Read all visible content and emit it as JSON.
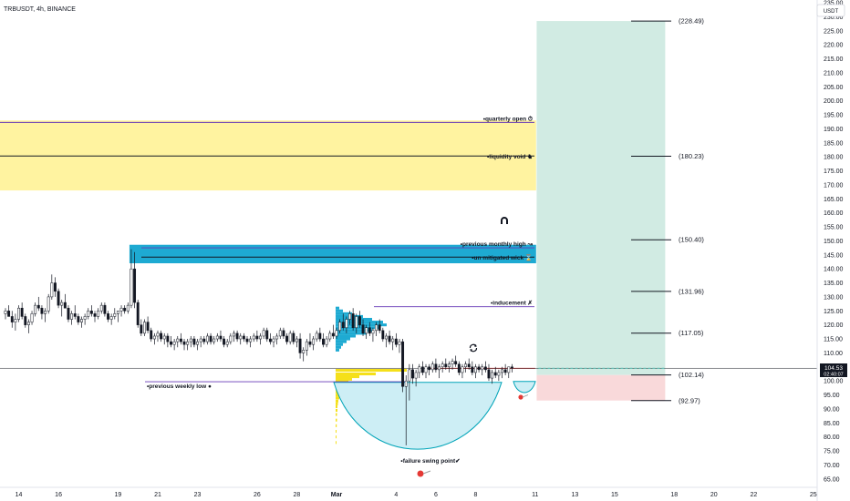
{
  "symbol_header": "TRBUSDT, 4h, BINANCE",
  "currency_button": "USDT",
  "current_price": {
    "value": "104.53",
    "countdown": "02:40:07"
  },
  "chart_data": {
    "type": "candlestick",
    "title": "",
    "ylim": [
      62,
      236
    ],
    "yticks": [
      65,
      70,
      75,
      80,
      85,
      90,
      95,
      100,
      105,
      110,
      115,
      120,
      125,
      130,
      135,
      140,
      145,
      150,
      155,
      160,
      165,
      170,
      175,
      180,
      185,
      190,
      195,
      200,
      205,
      210,
      215,
      220,
      225,
      230,
      235
    ],
    "ytick_labels": [
      "65.00",
      "70.00",
      "75.00",
      "80.00",
      "85.00",
      "90.00",
      "95.00",
      "100.00",
      "105.00",
      "110.00",
      "115.00",
      "120.00",
      "125.00",
      "130.00",
      "135.00",
      "140.00",
      "145.00",
      "150.00",
      "155.00",
      "160.00",
      "165.00",
      "170.00",
      "175.00",
      "180.00",
      "185.00",
      "190.00",
      "195.00",
      "200.00",
      "205.00",
      "210.00",
      "215.00",
      "220.00",
      "225.00",
      "230.00",
      "235.00"
    ],
    "xticks": [
      {
        "label": "14",
        "i": 4
      },
      {
        "label": "16",
        "i": 16
      },
      {
        "label": "19",
        "i": 34
      },
      {
        "label": "21",
        "i": 46
      },
      {
        "label": "23",
        "i": 58
      },
      {
        "label": "26",
        "i": 76
      },
      {
        "label": "28",
        "i": 88
      },
      {
        "label": "Mar",
        "i": 100
      },
      {
        "label": "4",
        "i": 118
      },
      {
        "label": "6",
        "i": 130
      },
      {
        "label": "8",
        "i": 142
      },
      {
        "label": "11",
        "i": 160
      },
      {
        "label": "13",
        "i": 172
      },
      {
        "label": "15",
        "i": 184
      },
      {
        "label": "18",
        "i": 202
      },
      {
        "label": "20",
        "i": 214
      },
      {
        "label": "22",
        "i": 226
      },
      {
        "label": "25",
        "i": 244
      }
    ],
    "candles": [
      [
        124,
        126,
        122,
        125
      ],
      [
        125,
        127,
        123,
        123
      ],
      [
        123,
        125,
        119,
        121
      ],
      [
        121,
        124,
        118,
        122
      ],
      [
        122,
        127,
        121,
        126
      ],
      [
        126,
        128,
        122,
        123
      ],
      [
        123,
        124,
        119,
        120
      ],
      [
        120,
        122,
        117,
        121
      ],
      [
        121,
        125,
        120,
        124
      ],
      [
        124,
        128,
        123,
        127
      ],
      [
        127,
        130,
        125,
        126
      ],
      [
        126,
        127,
        122,
        124
      ],
      [
        124,
        126,
        121,
        125
      ],
      [
        125,
        131,
        124,
        130
      ],
      [
        130,
        138,
        129,
        135
      ],
      [
        135,
        137,
        130,
        132
      ],
      [
        132,
        133,
        126,
        127
      ],
      [
        127,
        129,
        123,
        128
      ],
      [
        128,
        131,
        126,
        126
      ],
      [
        126,
        127,
        121,
        122
      ],
      [
        122,
        125,
        120,
        124
      ],
      [
        124,
        127,
        122,
        123
      ],
      [
        123,
        124,
        120,
        121
      ],
      [
        121,
        123,
        119,
        122
      ],
      [
        122,
        124,
        120,
        123
      ],
      [
        123,
        126,
        122,
        125
      ],
      [
        125,
        127,
        123,
        124
      ],
      [
        124,
        125,
        121,
        123
      ],
      [
        123,
        126,
        122,
        125
      ],
      [
        125,
        128,
        124,
        127
      ],
      [
        127,
        128,
        123,
        124
      ],
      [
        124,
        125,
        121,
        122
      ],
      [
        122,
        124,
        120,
        123
      ],
      [
        123,
        126,
        122,
        124
      ],
      [
        124,
        125,
        121,
        125
      ],
      [
        125,
        127,
        123,
        126
      ],
      [
        126,
        127,
        124,
        125
      ],
      [
        125,
        128,
        124,
        127
      ],
      [
        127,
        147,
        126,
        140
      ],
      [
        140,
        146,
        126,
        128
      ],
      [
        128,
        129,
        119,
        120
      ],
      [
        120,
        122,
        116,
        117
      ],
      [
        117,
        122,
        116,
        121
      ],
      [
        121,
        123,
        117,
        118
      ],
      [
        118,
        119,
        114,
        115
      ],
      [
        115,
        117,
        113,
        116
      ],
      [
        116,
        118,
        114,
        117
      ],
      [
        117,
        118,
        114,
        115
      ],
      [
        115,
        117,
        113,
        116
      ],
      [
        116,
        117,
        112,
        114
      ],
      [
        114,
        116,
        112,
        113
      ],
      [
        113,
        115,
        111,
        114
      ],
      [
        114,
        116,
        112,
        115
      ],
      [
        115,
        117,
        113,
        114
      ],
      [
        114,
        115,
        111,
        113
      ],
      [
        113,
        115,
        111,
        114
      ],
      [
        114,
        116,
        112,
        115
      ],
      [
        115,
        116,
        112,
        113
      ],
      [
        113,
        115,
        111,
        114
      ],
      [
        114,
        116,
        112,
        115
      ],
      [
        115,
        116,
        113,
        114
      ],
      [
        114,
        117,
        113,
        116
      ],
      [
        116,
        117,
        113,
        114
      ],
      [
        114,
        116,
        113,
        115
      ],
      [
        115,
        117,
        114,
        116
      ],
      [
        116,
        118,
        114,
        115
      ],
      [
        115,
        116,
        112,
        113
      ],
      [
        113,
        115,
        112,
        114
      ],
      [
        114,
        117,
        113,
        116
      ],
      [
        116,
        118,
        114,
        117
      ],
      [
        117,
        118,
        114,
        115
      ],
      [
        115,
        117,
        113,
        116
      ],
      [
        116,
        117,
        114,
        115
      ],
      [
        115,
        116,
        113,
        114
      ],
      [
        114,
        116,
        112,
        115
      ],
      [
        115,
        117,
        114,
        116
      ],
      [
        116,
        118,
        114,
        115
      ],
      [
        115,
        117,
        113,
        116
      ],
      [
        116,
        119,
        115,
        118
      ],
      [
        118,
        119,
        114,
        115
      ],
      [
        115,
        117,
        113,
        114
      ],
      [
        114,
        116,
        112,
        115
      ],
      [
        115,
        117,
        113,
        116
      ],
      [
        116,
        119,
        115,
        118
      ],
      [
        118,
        119,
        115,
        116
      ],
      [
        116,
        117,
        113,
        114
      ],
      [
        114,
        118,
        113,
        117
      ],
      [
        117,
        118,
        113,
        114
      ],
      [
        114,
        116,
        112,
        115
      ],
      [
        115,
        117,
        108,
        110
      ],
      [
        110,
        112,
        107,
        111
      ],
      [
        111,
        115,
        109,
        114
      ],
      [
        114,
        117,
        112,
        113
      ],
      [
        113,
        116,
        111,
        115
      ],
      [
        115,
        118,
        114,
        117
      ],
      [
        117,
        119,
        114,
        115
      ],
      [
        115,
        117,
        112,
        113
      ],
      [
        113,
        116,
        112,
        115
      ],
      [
        115,
        118,
        114,
        117
      ],
      [
        117,
        120,
        115,
        116
      ],
      [
        116,
        119,
        115,
        118
      ],
      [
        118,
        122,
        117,
        121
      ],
      [
        121,
        124,
        118,
        119
      ],
      [
        119,
        123,
        117,
        122
      ],
      [
        122,
        125,
        120,
        124
      ],
      [
        124,
        126,
        118,
        119
      ],
      [
        119,
        124,
        117,
        123
      ],
      [
        123,
        125,
        119,
        120
      ],
      [
        120,
        122,
        116,
        117
      ],
      [
        117,
        120,
        115,
        119
      ],
      [
        119,
        121,
        116,
        117
      ],
      [
        117,
        119,
        114,
        118
      ],
      [
        118,
        121,
        116,
        120
      ],
      [
        120,
        122,
        117,
        118
      ],
      [
        118,
        119,
        114,
        115
      ],
      [
        115,
        117,
        112,
        116
      ],
      [
        116,
        118,
        113,
        114
      ],
      [
        114,
        116,
        111,
        115
      ],
      [
        115,
        117,
        112,
        113
      ],
      [
        113,
        115,
        110,
        114
      ],
      [
        114,
        115,
        96,
        98
      ],
      [
        98,
        102,
        77,
        100
      ],
      [
        100,
        106,
        93,
        104
      ],
      [
        104,
        106,
        99,
        101
      ],
      [
        101,
        104,
        98,
        103
      ],
      [
        103,
        106,
        101,
        105
      ],
      [
        105,
        107,
        102,
        103
      ],
      [
        103,
        106,
        101,
        105
      ],
      [
        105,
        106,
        102,
        104
      ],
      [
        104,
        107,
        103,
        106
      ],
      [
        106,
        108,
        103,
        104
      ],
      [
        104,
        106,
        101,
        105
      ],
      [
        105,
        107,
        103,
        106
      ],
      [
        106,
        108,
        104,
        105
      ],
      [
        105,
        107,
        103,
        106
      ],
      [
        106,
        108,
        104,
        107
      ],
      [
        107,
        109,
        105,
        106
      ],
      [
        106,
        107,
        102,
        103
      ],
      [
        103,
        106,
        101,
        105
      ],
      [
        105,
        107,
        103,
        106
      ],
      [
        106,
        108,
        104,
        105
      ],
      [
        105,
        107,
        102,
        103
      ],
      [
        103,
        106,
        101,
        105
      ],
      [
        105,
        106,
        103,
        104
      ],
      [
        104,
        106,
        102,
        105
      ],
      [
        105,
        107,
        103,
        104
      ],
      [
        104,
        106,
        100,
        101
      ],
      [
        101,
        104,
        99,
        103
      ],
      [
        103,
        105,
        101,
        102
      ],
      [
        102,
        104,
        100,
        103
      ],
      [
        103,
        105,
        101,
        104
      ],
      [
        104,
        106,
        102,
        103
      ],
      [
        103,
        105,
        101,
        105
      ],
      [
        105,
        106,
        103,
        104.5
      ]
    ],
    "levels": [
      {
        "name": "quarterly-open",
        "label": "•quarterly open",
        "emoji": "⏱",
        "value": 192.3,
        "color": "#673ab7"
      },
      {
        "name": "liquidity-void",
        "label": "•liquidity void",
        "emoji": "♞",
        "value": 180.3,
        "color": "#131722"
      },
      {
        "name": "previous-monthly-high",
        "label": "•previous monthly high",
        "emoji": "↝",
        "value": 147.5,
        "color": "#673ab7"
      },
      {
        "name": "unmitigated-wick",
        "label": "•un mitigated wick",
        "emoji": "⌛",
        "value": 144.2,
        "color": "#131722"
      },
      {
        "name": "inducement",
        "label": "•inducement",
        "emoji": "✗",
        "value": 126.5,
        "color": "#673ab7"
      },
      {
        "name": "previous-weekly-low",
        "label": "•previous weekly low",
        "emoji": "●",
        "value": 99.7,
        "color": "#673ab7"
      }
    ],
    "zones": [
      {
        "name": "liquidity-void-zone",
        "from": 168,
        "to": 193,
        "i_from": 0,
        "i_to": 160,
        "color": "#fff3a0"
      },
      {
        "name": "unmitigated-wick-zone",
        "from": 142,
        "to": 148.6,
        "i_from": 38,
        "i_to": 160,
        "color": "#1eaad2"
      },
      {
        "name": "target-zone",
        "from": 102.1,
        "to": 228.5,
        "i_from": 161,
        "i_to": 199,
        "color": "#d1ebe3"
      },
      {
        "name": "stop-zone",
        "from": 93,
        "to": 102.1,
        "i_from": 161,
        "i_to": 199,
        "color": "#f9d9da"
      }
    ],
    "targets": [
      {
        "label": "(228.49)",
        "value": 228.49
      },
      {
        "label": "(180.23)",
        "value": 180.23
      },
      {
        "label": "(150.40)",
        "value": 150.4
      },
      {
        "label": "(131.96)",
        "value": 131.96
      },
      {
        "label": "(117.05)",
        "value": 117.05
      },
      {
        "label": "(102.14)",
        "value": 102.14
      },
      {
        "label": "(92.97)",
        "value": 92.97
      }
    ],
    "current_price_line": {
      "value": 104.53,
      "color": "#131722"
    },
    "failure_swing_label": "•failure swing point✔",
    "swing_level": {
      "value": 104.5,
      "i_from": 128,
      "i_to": 160,
      "color": "#e53935"
    }
  }
}
